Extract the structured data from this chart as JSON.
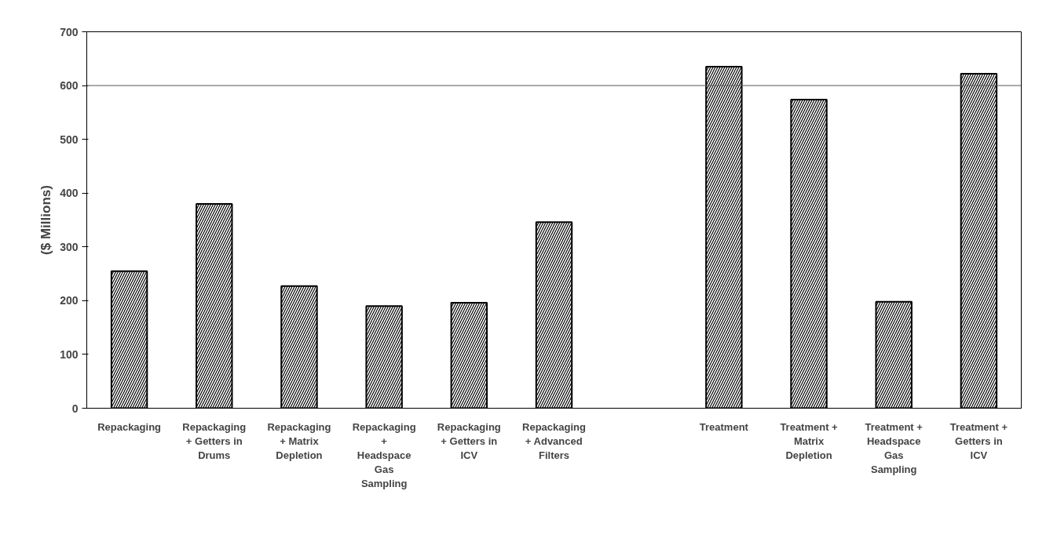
{
  "chart_data": {
    "type": "bar",
    "ylabel": "($ Millions)",
    "categories": [
      "Repackaging",
      "Repackaging\n+ Getters in\nDrums",
      "Repackaging\n+ Matrix\nDepletion",
      "Repackaging\n+\nHeadspace\nGas\nSampling",
      "Repackaging\n+ Getters in\nICV",
      "Repackaging\n+ Advanced\nFilters",
      null,
      "Treatment",
      "Treatment +\nMatrix\nDepletion",
      "Treatment +\nHeadspace\nGas\nSampling",
      "Treatment +\nGetters in\nICV"
    ],
    "values": [
      255,
      380,
      227,
      190,
      196,
      346,
      null,
      635,
      574,
      198,
      622
    ],
    "color": "#000000",
    "ylim": [
      0,
      700
    ],
    "yticks": [
      0,
      100,
      200,
      300,
      400,
      500,
      600,
      700
    ],
    "ref_lines": [
      {
        "axis": "y",
        "value": 600,
        "color": "#555555"
      }
    ],
    "grid": false
  }
}
